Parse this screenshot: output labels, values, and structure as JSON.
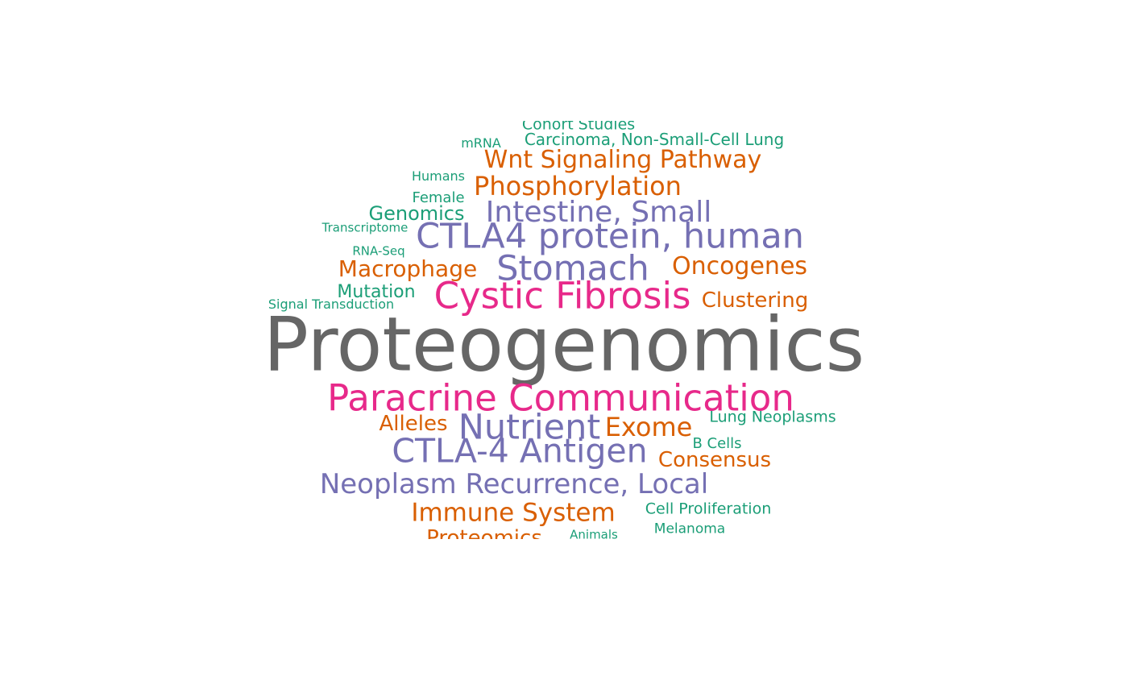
{
  "palette": {
    "gray": "#666666",
    "pink": "#E7298A",
    "purple": "#7570B3",
    "orange": "#D95F02",
    "green": "#1B9E77"
  },
  "words": [
    {
      "text": "Cohort Studies",
      "color": "#1B9E77"
    },
    {
      "text": "mRNA",
      "color": "#1B9E77"
    },
    {
      "text": "Carcinoma, Non-Small-Cell Lung",
      "color": "#1B9E77"
    },
    {
      "text": "Wnt Signaling Pathway",
      "color": "#D95F02"
    },
    {
      "text": "Humans",
      "color": "#1B9E77"
    },
    {
      "text": "Phosphorylation",
      "color": "#D95F02"
    },
    {
      "text": "Female",
      "color": "#1B9E77"
    },
    {
      "text": "Genomics",
      "color": "#1B9E77"
    },
    {
      "text": "Intestine, Small",
      "color": "#7570B3"
    },
    {
      "text": "Transcriptome",
      "color": "#1B9E77"
    },
    {
      "text": "CTLA4 protein, human",
      "color": "#7570B3"
    },
    {
      "text": "RNA-Seq",
      "color": "#1B9E77"
    },
    {
      "text": "Macrophage",
      "color": "#D95F02"
    },
    {
      "text": "Stomach",
      "color": "#7570B3"
    },
    {
      "text": "Oncogenes",
      "color": "#D95F02"
    },
    {
      "text": "Mutation",
      "color": "#1B9E77"
    },
    {
      "text": "Cystic Fibrosis",
      "color": "#E7298A"
    },
    {
      "text": "Clustering",
      "color": "#D95F02"
    },
    {
      "text": "Signal Transduction",
      "color": "#1B9E77"
    },
    {
      "text": "Proteogenomics",
      "color": "#666666"
    },
    {
      "text": "Paracrine Communication",
      "color": "#E7298A"
    },
    {
      "text": "Alleles",
      "color": "#D95F02"
    },
    {
      "text": "Nutrient",
      "color": "#7570B3"
    },
    {
      "text": "Exome",
      "color": "#D95F02"
    },
    {
      "text": "Lung Neoplasms",
      "color": "#1B9E77"
    },
    {
      "text": "CTLA-4 Antigen",
      "color": "#7570B3"
    },
    {
      "text": "B Cells",
      "color": "#1B9E77"
    },
    {
      "text": "Consensus",
      "color": "#D95F02"
    },
    {
      "text": "Neoplasm Recurrence, Local",
      "color": "#7570B3"
    },
    {
      "text": "Immune System",
      "color": "#D95F02"
    },
    {
      "text": "Cell Proliferation",
      "color": "#1B9E77"
    },
    {
      "text": "Proteomics",
      "color": "#D95F02"
    },
    {
      "text": "Animals",
      "color": "#1B9E77"
    },
    {
      "text": "Melanoma",
      "color": "#1B9E77"
    }
  ]
}
